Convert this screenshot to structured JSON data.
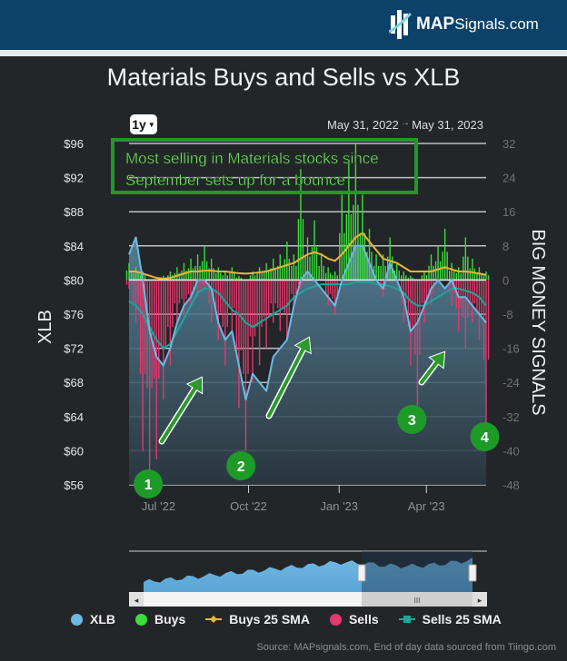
{
  "header": {
    "logo_brand": "MAP",
    "logo_rest": "Signals.com"
  },
  "chart_data": {
    "type": "bar+line",
    "title": "Materials Buys and Sells vs XLB",
    "range_selector": "1y",
    "date_from": "May 31, 2022",
    "date_arrow": "→",
    "date_to": "May 31, 2023",
    "ylabel_left": "XLB",
    "ylabel_right": "BIG MONEY SIGNALS",
    "ylim_left": [
      56,
      96
    ],
    "ylim_right": [
      -48,
      32
    ],
    "yticks_left": [
      "$96",
      "$92",
      "$88",
      "$84",
      "$80",
      "$76",
      "$72",
      "$68",
      "$64",
      "$60",
      "$56"
    ],
    "yticks_right": [
      "32",
      "24",
      "16",
      "8",
      "0",
      "-8",
      "-16",
      "-24",
      "-32",
      "-40",
      "-48"
    ],
    "xticks": [
      {
        "label": "Jul '22",
        "week": 4.3
      },
      {
        "label": "Oct '22",
        "week": 17.4
      },
      {
        "label": "Jan '23",
        "week": 30.6
      },
      {
        "label": "Apr '23",
        "week": 43.3
      }
    ],
    "x_unit": "weeks since May 31, 2022",
    "series": [
      {
        "name": "XLB",
        "color": "#6fb8e3",
        "values": [
          83,
          85,
          80,
          74,
          71,
          70,
          72,
          75,
          77,
          78,
          80,
          80,
          79,
          75,
          73,
          74,
          70,
          66,
          69,
          68,
          67,
          71,
          72,
          73,
          77,
          80,
          81,
          80,
          79,
          78,
          77,
          80,
          82,
          84,
          84,
          82,
          80,
          79,
          82,
          80,
          78,
          74,
          75,
          77,
          79,
          80,
          79,
          80,
          78,
          78,
          77,
          76,
          75
        ]
      },
      {
        "name": "Buys",
        "color": "#3ddc3d",
        "values": [
          4,
          3,
          2,
          0,
          0,
          1,
          2,
          3,
          4,
          5,
          6,
          8,
          5,
          3,
          2,
          3,
          1,
          0,
          2,
          3,
          4,
          5,
          6,
          9,
          6,
          26,
          10,
          14,
          6,
          3,
          2,
          20,
          28,
          32,
          20,
          12,
          6,
          6,
          10,
          4,
          2,
          1,
          0,
          2,
          6,
          8,
          12,
          4,
          3,
          10,
          5,
          3,
          2
        ]
      },
      {
        "name": "Buys 25 SMA",
        "color": "#e8b73a",
        "values": [
          2,
          2,
          1.5,
          1,
          0.5,
          0.3,
          0.5,
          1,
          1.5,
          2,
          2,
          2.2,
          2.2,
          2,
          2,
          1.8,
          1.6,
          1.5,
          1.6,
          1.8,
          2,
          2.5,
          3,
          3.5,
          4,
          5,
          6,
          6.5,
          6,
          5,
          4.5,
          6,
          8,
          10,
          11,
          9,
          7,
          5,
          4.5,
          4,
          3,
          2,
          2,
          2,
          2,
          2.5,
          3,
          2.5,
          2,
          2,
          1.8,
          1.5,
          1.2
        ]
      },
      {
        "name": "Sells",
        "color": "#e03a6e",
        "values": [
          -2,
          -10,
          -40,
          -46,
          -42,
          -28,
          -20,
          -10,
          -8,
          -6,
          -4,
          -2,
          -10,
          -14,
          -20,
          -12,
          -30,
          -40,
          -24,
          -20,
          -16,
          -10,
          -12,
          -14,
          -6,
          -2,
          0,
          0,
          0,
          -6,
          -8,
          0,
          0,
          0,
          0,
          0,
          0,
          -4,
          0,
          0,
          -10,
          -20,
          -32,
          -10,
          -6,
          0,
          0,
          -6,
          -12,
          -16,
          -10,
          -14,
          -34
        ]
      },
      {
        "name": "Sells 25 SMA",
        "color": "#1fa59a",
        "values": [
          -5,
          -6,
          -8,
          -11,
          -14,
          -16,
          -15,
          -12,
          -9,
          -6,
          -3,
          -2,
          -2,
          -3,
          -5,
          -7,
          -8,
          -10,
          -11,
          -10,
          -9,
          -8,
          -7,
          -6,
          -4,
          -3,
          -2,
          -1.5,
          -1,
          -1,
          -1,
          -1,
          -1,
          -0.5,
          -0.5,
          -0.5,
          -1,
          -1,
          -1.5,
          -2,
          -3,
          -5,
          -6,
          -6,
          -5,
          -4,
          -3,
          -2,
          -2,
          -2.5,
          -3,
          -4,
          -6
        ]
      }
    ],
    "legend": [
      "XLB",
      "Buys",
      "Buys 25 SMA",
      "Sells",
      "Sells 25 SMA"
    ],
    "legend_placement": "bottom",
    "grid": true,
    "annotation_text": [
      "Most selling in Materials stocks since",
      "September sets up for a bounce"
    ],
    "markers": [
      {
        "label": "1",
        "week": 2.8
      },
      {
        "label": "2",
        "week": 16.3
      },
      {
        "label": "3",
        "week": 41.2
      },
      {
        "label": "4",
        "week": 51.8
      }
    ],
    "navigator": {
      "scroll_left": "◂",
      "scroll_right": "▸",
      "grip": "III"
    }
  },
  "source": "Source: MAPsignals.com, End of day data sourced from Tiingo.com"
}
